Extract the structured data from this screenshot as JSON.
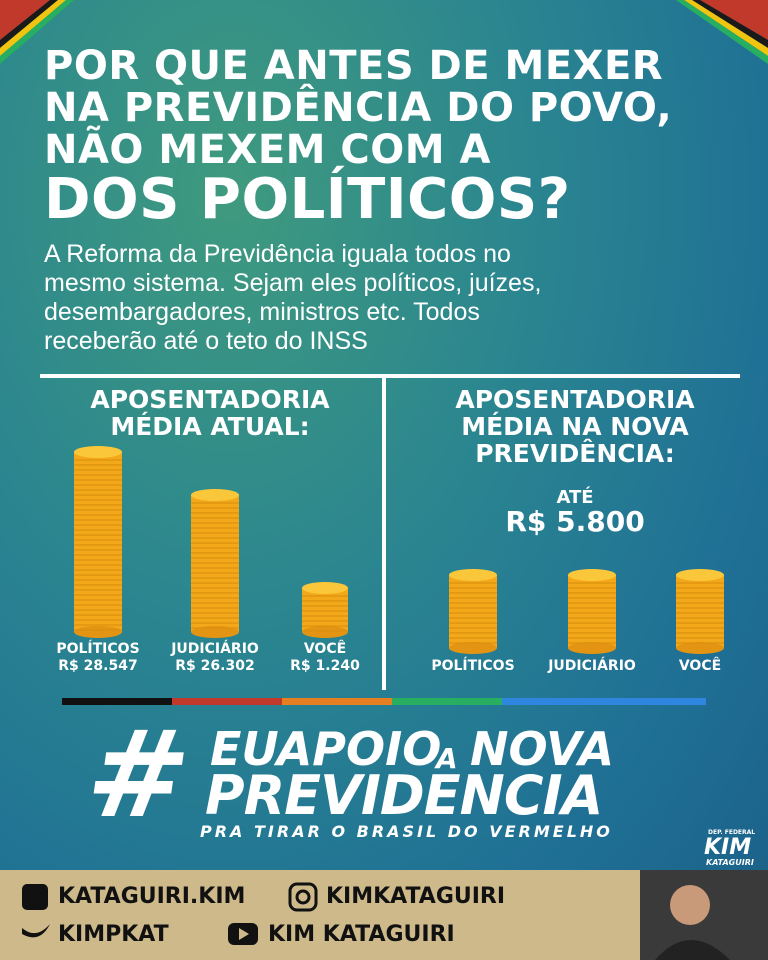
{
  "headline": {
    "lines": [
      "POR QUE ANTES DE MEXER",
      "NA PREVIDÊNCIA DO POVO,",
      "NÃO MEXEM COM A",
      "DOS POLÍTICOS?"
    ]
  },
  "intro": {
    "lines": [
      "A Reforma da Previdência iguala todos no",
      "mesmo sistema. Sejam eles políticos, juízes,",
      "desembargadores, ministros etc. Todos",
      "receberão até o teto do INSS"
    ]
  },
  "current_panel": {
    "title_lines": [
      "APOSENTADORIA",
      "MÉDIA ATUAL:"
    ],
    "items": [
      {
        "label": "POLÍTICOS",
        "amount": "R$ 28.547"
      },
      {
        "label": "JUDICIÁRIO",
        "amount": "R$ 26.302"
      },
      {
        "label": "VOCÊ",
        "amount": "R$ 1.240"
      }
    ]
  },
  "new_panel": {
    "title_lines": [
      "APOSENTADORIA",
      "MÉDIA NA NOVA",
      "PREVIDÊNCIA:"
    ],
    "cap_lines": [
      "ATÉ",
      "R$ 5.800"
    ],
    "labels": [
      "POLÍTICOS",
      "JUDICIÁRIO",
      "VOCÊ"
    ]
  },
  "hashtag": {
    "symbol": "#",
    "word1": "EUAPOIO",
    "word2": "A",
    "word3": "NOVA",
    "line2": "PREVIDENCIA",
    "tagline": "PRA TIRAR O BRASIL DO VERMELHO"
  },
  "logo": {
    "top": "DEP. FEDERAL",
    "name": "KIM",
    "surname": "KATAGUIRI"
  },
  "socials": {
    "facebook": "KATAGUIRI.KIM",
    "instagram": "KIMKATAGUIRI",
    "twitter": "KIMPKAT",
    "youtube": "KIM KATAGUIRI"
  }
}
